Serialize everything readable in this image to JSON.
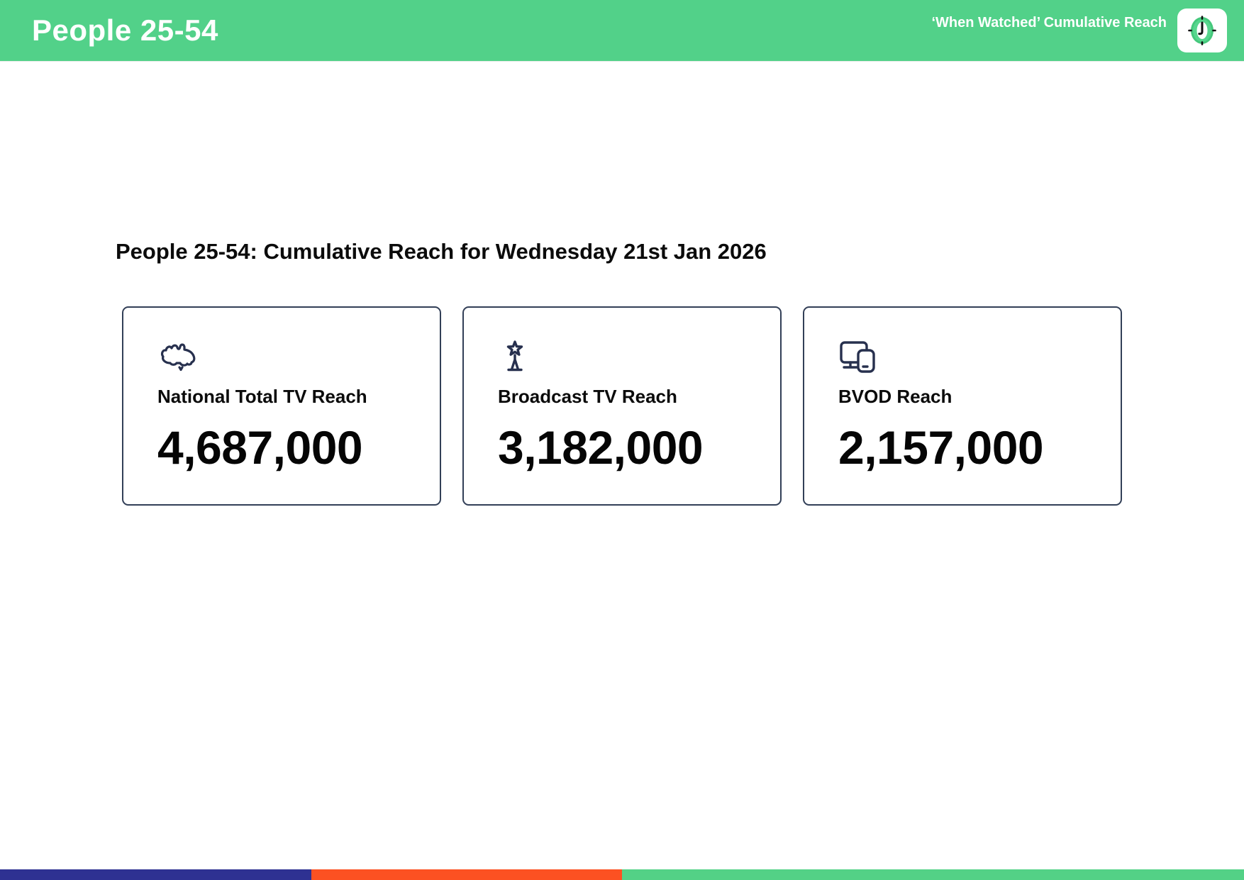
{
  "header": {
    "title": "People 25-54",
    "subtitle": "‘When Watched’ Cumulative Reach",
    "badge_icon": "clock-icon"
  },
  "main": {
    "heading": "People 25-54: Cumulative Reach for Wednesday 21st Jan 2026",
    "cards": [
      {
        "icon": "australia-map-icon",
        "label": "National Total TV Reach",
        "value": "4,687,000"
      },
      {
        "icon": "broadcast-star-tower-icon",
        "label": "Broadcast TV Reach",
        "value": "3,182,000"
      },
      {
        "icon": "tv-and-phone-icon",
        "label": "BVOD Reach",
        "value": "2,157,000"
      }
    ]
  },
  "footer": {
    "segments": [
      {
        "name": "blue-segment",
        "color": "#2e3192",
        "width_pct": 25
      },
      {
        "name": "orange-segment",
        "color": "#fc5122",
        "width_pct": 25
      },
      {
        "name": "green-segment",
        "color": "#53d186",
        "width_pct": 50
      }
    ]
  },
  "theme": {
    "header_green": "#52d189",
    "icon_navy": "#27304e",
    "card_border": "#323f57"
  }
}
